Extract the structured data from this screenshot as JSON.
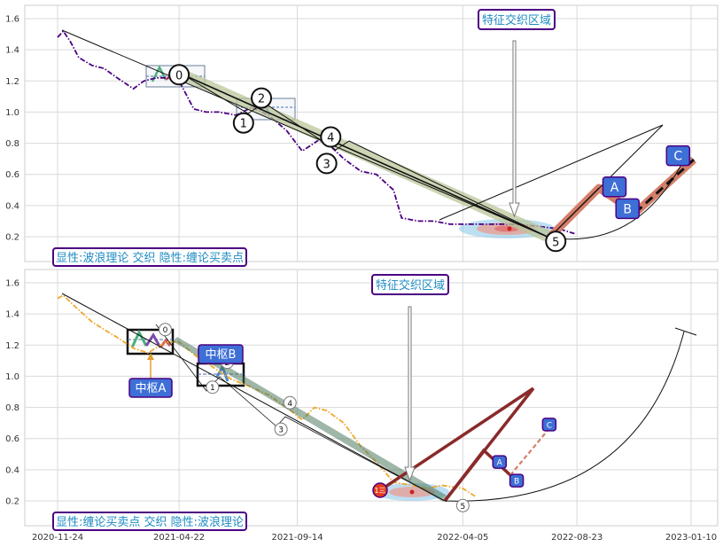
{
  "x_ticks": [
    "2020-11-24",
    "2021-04-22",
    "2021-09-14",
    "2022-04-05",
    "2022-08-23",
    "2023-01-10"
  ],
  "top_panel": {
    "legend_text": "显性:波浪理论 交织 隐性:缠论买卖点",
    "region_label": "特征交织区域",
    "abc_labels": [
      "A",
      "B",
      "C"
    ]
  },
  "bottom_panel": {
    "legend_text": "显性:缠论买卖点 交织 隐性:波浪理论",
    "region_label": "特征交织区域",
    "pivot_a_label": "中枢A",
    "pivot_b_label": "中枢B",
    "abc_labels": [
      "A",
      "B",
      "C"
    ],
    "buy_point_label": "1三"
  },
  "colors": {
    "top_price": "#4b0082",
    "bottom_price": "#f0a830",
    "box_border": "#4b0082",
    "label_fill": "#3d6fd6",
    "region_text": "#1e8bc3"
  },
  "chart_data": [
    {
      "type": "line",
      "panel": "top",
      "ylim": [
        0.05,
        1.7
      ],
      "y_ticks": [
        0.2,
        0.4,
        0.6,
        0.8,
        1.0,
        1.2,
        1.4,
        1.6
      ],
      "series": [
        {
          "style": "dash-dot",
          "x": [
            "2020-11-24",
            "2020-12-01",
            "2020-12-10",
            "2020-12-20",
            "2021-01-05",
            "2021-01-20",
            "2021-02-05",
            "2021-02-25",
            "2021-03-10",
            "2021-03-25",
            "2021-04-05",
            "2021-04-22",
            "2021-05-10",
            "2021-05-25",
            "2021-06-10",
            "2021-07-01",
            "2021-07-20",
            "2021-08-10",
            "2021-09-01",
            "2021-09-20",
            "2021-10-10",
            "2021-10-25",
            "2021-11-10",
            "2021-12-01",
            "2021-12-20",
            "2022-01-10",
            "2022-01-20",
            "2022-02-10",
            "2022-03-01",
            "2022-03-20",
            "2022-04-05",
            "2022-05-01",
            "2022-06-01",
            "2022-07-01",
            "2022-08-01",
            "2022-08-20"
          ],
          "y": [
            1.48,
            1.52,
            1.45,
            1.35,
            1.3,
            1.28,
            1.22,
            1.15,
            1.2,
            1.22,
            1.22,
            1.2,
            1.02,
            1.0,
            1.0,
            0.98,
            1.03,
            0.98,
            0.88,
            0.75,
            0.82,
            0.78,
            0.7,
            0.62,
            0.6,
            0.5,
            0.32,
            0.3,
            0.3,
            0.28,
            0.28,
            0.28,
            0.28,
            0.27,
            0.25,
            0.22
          ]
        }
      ],
      "wave_points": [
        {
          "label": "0",
          "x": "2021-04-22",
          "y": 1.24
        },
        {
          "label": "1",
          "x": "2021-07-10",
          "y": 0.93
        },
        {
          "label": "2",
          "x": "2021-08-01",
          "y": 1.09
        },
        {
          "label": "3",
          "x": "2021-10-20",
          "y": 0.67
        },
        {
          "label": "4",
          "x": "2021-10-25",
          "y": 0.84
        },
        {
          "label": "5",
          "x": "2022-07-28",
          "y": 0.17
        }
      ],
      "abc_points": [
        {
          "label": "A",
          "x": "2022-10-08",
          "y": 0.52
        },
        {
          "label": "B",
          "x": "2022-10-24",
          "y": 0.38
        },
        {
          "label": "C",
          "x": "2022-12-25",
          "y": 0.72
        }
      ]
    },
    {
      "type": "line",
      "panel": "bottom",
      "ylim": [
        0.05,
        1.7
      ],
      "y_ticks": [
        0.2,
        0.4,
        0.6,
        0.8,
        1.0,
        1.2,
        1.4,
        1.6
      ],
      "series": [
        {
          "style": "dash-dot",
          "x": [
            "2020-11-24",
            "2020-12-01",
            "2020-12-15",
            "2021-01-05",
            "2021-01-20",
            "2021-02-05",
            "2021-02-25",
            "2021-03-15",
            "2021-04-05",
            "2021-04-22",
            "2021-05-15",
            "2021-06-05",
            "2021-06-25",
            "2021-07-20",
            "2021-08-10",
            "2021-09-01",
            "2021-09-20",
            "2021-10-05",
            "2021-10-20",
            "2021-11-10",
            "2021-12-01",
            "2021-12-20",
            "2022-01-10",
            "2022-02-01",
            "2022-02-20",
            "2022-03-10",
            "2022-04-05",
            "2022-04-20"
          ],
          "y": [
            1.5,
            1.52,
            1.45,
            1.35,
            1.3,
            1.25,
            1.18,
            1.15,
            1.22,
            1.22,
            1.12,
            1.05,
            0.98,
            0.93,
            0.88,
            0.8,
            0.72,
            0.8,
            0.78,
            0.7,
            0.55,
            0.45,
            0.32,
            0.3,
            0.28,
            0.3,
            0.28,
            0.23
          ]
        }
      ],
      "wave_points": [
        {
          "label": "0",
          "x": "2021-04-05",
          "y": 1.3
        },
        {
          "label": "1",
          "x": "2021-06-02",
          "y": 0.93
        },
        {
          "label": "2",
          "x": "2021-06-20",
          "y": 1.09
        },
        {
          "label": "3",
          "x": "2021-08-25",
          "y": 0.66
        },
        {
          "label": "4",
          "x": "2021-09-05",
          "y": 0.83
        },
        {
          "label": "5",
          "x": "2022-04-05",
          "y": 0.17
        }
      ],
      "abc_points": [
        {
          "label": "A",
          "x": "2022-05-20",
          "y": 0.45
        },
        {
          "label": "B",
          "x": "2022-06-10",
          "y": 0.33
        },
        {
          "label": "C",
          "x": "2022-07-20",
          "y": 0.69
        }
      ]
    }
  ]
}
